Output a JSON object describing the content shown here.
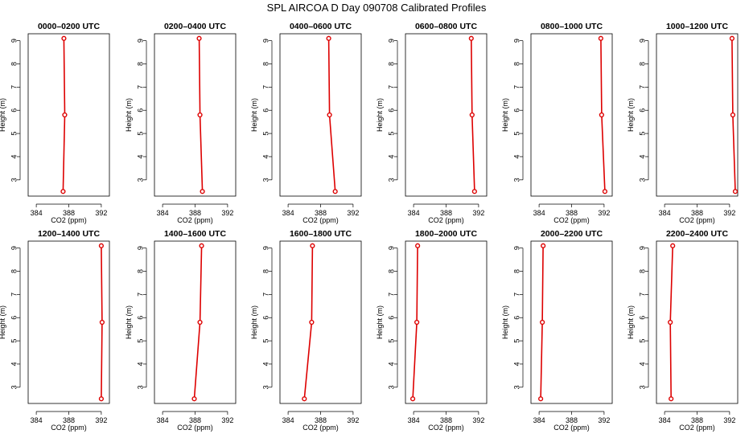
{
  "chart_data": {
    "type": "line",
    "title": "SPL AIRCOA D  Day 090708  Calibrated Profiles",
    "xlabel": "CO2 (ppm)",
    "ylabel": "Height (m)",
    "xlim": [
      383,
      393
    ],
    "ylim": [
      2.3,
      9.3
    ],
    "xticks": [
      384,
      388,
      392
    ],
    "yticks": [
      3,
      4,
      5,
      6,
      7,
      8,
      9
    ],
    "heights": [
      2.5,
      5.8,
      9.1
    ],
    "line_color": "#dd0000",
    "panels": [
      {
        "title": "0000–0200 UTC",
        "co2": [
          387.3,
          387.5,
          387.4
        ]
      },
      {
        "title": "0200–0400 UTC",
        "co2": [
          388.9,
          388.6,
          388.5
        ]
      },
      {
        "title": "0400–0600 UTC",
        "co2": [
          389.8,
          389.1,
          389.0
        ]
      },
      {
        "title": "0600–0800 UTC",
        "co2": [
          391.5,
          391.2,
          391.1
        ]
      },
      {
        "title": "0800–1000 UTC",
        "co2": [
          392.1,
          391.7,
          391.6
        ]
      },
      {
        "title": "1000–1200 UTC",
        "co2": [
          392.7,
          392.4,
          392.3
        ]
      },
      {
        "title": "1200–1400 UTC",
        "co2": [
          392.0,
          392.1,
          392.0
        ]
      },
      {
        "title": "1400–1600 UTC",
        "co2": [
          387.9,
          388.6,
          388.8
        ]
      },
      {
        "title": "1600–1800 UTC",
        "co2": [
          386.0,
          386.9,
          387.0
        ]
      },
      {
        "title": "1800–2000 UTC",
        "co2": [
          383.9,
          384.4,
          384.5
        ]
      },
      {
        "title": "2000–2200 UTC",
        "co2": [
          384.2,
          384.4,
          384.5
        ]
      },
      {
        "title": "2200–2400 UTC",
        "co2": [
          384.8,
          384.7,
          385.0
        ]
      }
    ]
  }
}
